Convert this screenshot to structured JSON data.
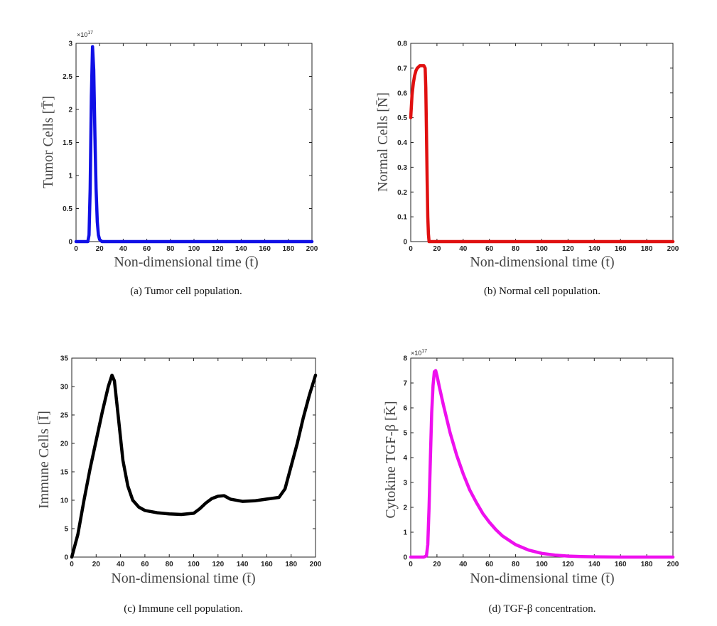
{
  "chart_data": [
    {
      "type": "line",
      "id": "a",
      "caption": "(a) Tumor cell population.",
      "xlabel": "Non-dimensional time",
      "xlabel_symbol": "(t̄)",
      "ylabel": "Tumor Cells",
      "ylabel_symbol": "[T̄]",
      "multiplier": "×10",
      "multiplier_exp": "17",
      "xlim": [
        0,
        200
      ],
      "ylim": [
        0,
        3
      ],
      "xticks": [
        "0",
        "20",
        "40",
        "60",
        "80",
        "100",
        "120",
        "140",
        "160",
        "180",
        "200"
      ],
      "yticks": [
        "0",
        "0.5",
        "1",
        "1.5",
        "2",
        "2.5",
        "3"
      ],
      "color": "#1010e6",
      "series": [
        {
          "x": [
            0,
            10,
            11,
            12,
            13,
            14,
            15,
            16,
            17,
            18,
            19,
            20,
            22,
            200
          ],
          "y": [
            0,
            0,
            0.1,
            0.8,
            2.2,
            2.95,
            2.6,
            1.6,
            0.8,
            0.3,
            0.1,
            0.03,
            0,
            0
          ]
        }
      ]
    },
    {
      "type": "line",
      "id": "b",
      "caption": "(b) Normal cell population.",
      "xlabel": "Non-dimensional time",
      "xlabel_symbol": "(t̄)",
      "ylabel": "Normal Cells",
      "ylabel_symbol": "[N̄]",
      "xlim": [
        0,
        200
      ],
      "ylim": [
        0,
        0.8
      ],
      "xticks": [
        "0",
        "20",
        "40",
        "60",
        "80",
        "100",
        "120",
        "140",
        "160",
        "180",
        "200"
      ],
      "yticks": [
        "0",
        "0.1",
        "0.2",
        "0.3",
        "0.4",
        "0.5",
        "0.6",
        "0.7",
        "0.8"
      ],
      "color": "#e01010",
      "series": [
        {
          "x": [
            0,
            1,
            2,
            3,
            4,
            5,
            6,
            7,
            8,
            9,
            10,
            11,
            11.5,
            12,
            12.5,
            13,
            13.5,
            14,
            200
          ],
          "y": [
            0.5,
            0.59,
            0.64,
            0.67,
            0.69,
            0.7,
            0.705,
            0.71,
            0.71,
            0.71,
            0.71,
            0.7,
            0.62,
            0.45,
            0.25,
            0.1,
            0.03,
            0,
            0
          ]
        }
      ]
    },
    {
      "type": "line",
      "id": "c",
      "caption": "(c) Immune cell population.",
      "xlabel": "Non-dimensional time",
      "xlabel_symbol": "(t̄)",
      "ylabel": "Immune Cells",
      "ylabel_symbol": "[Ī]",
      "xlim": [
        0,
        200
      ],
      "ylim": [
        0,
        35
      ],
      "xticks": [
        "0",
        "20",
        "40",
        "60",
        "80",
        "100",
        "120",
        "140",
        "160",
        "180",
        "200"
      ],
      "yticks": [
        "0",
        "5",
        "10",
        "15",
        "20",
        "25",
        "30",
        "35"
      ],
      "color": "#000000",
      "series": [
        {
          "x": [
            0,
            5,
            10,
            15,
            20,
            25,
            30,
            33,
            35,
            38,
            42,
            46,
            50,
            55,
            60,
            70,
            80,
            90,
            100,
            105,
            110,
            115,
            120,
            125,
            130,
            140,
            150,
            160,
            170,
            175,
            180,
            185,
            190,
            195,
            200
          ],
          "y": [
            0,
            4,
            10,
            15.5,
            20.5,
            25.5,
            30,
            32,
            31,
            25,
            17,
            12.5,
            10,
            8.8,
            8.2,
            7.8,
            7.6,
            7.5,
            7.7,
            8.5,
            9.5,
            10.3,
            10.7,
            10.8,
            10.2,
            9.8,
            9.9,
            10.2,
            10.5,
            12,
            16,
            20,
            24.5,
            28.5,
            32
          ]
        }
      ]
    },
    {
      "type": "line",
      "id": "d",
      "caption": "(d) TGF-β concentration.",
      "xlabel": "Non-dimensional time",
      "xlabel_symbol": "(t̄)",
      "ylabel": "Cytokine TGF-β",
      "ylabel_symbol": "[K̄]",
      "multiplier": "×10",
      "multiplier_exp": "17",
      "xlim": [
        0,
        200
      ],
      "ylim": [
        0,
        8
      ],
      "xticks": [
        "0",
        "20",
        "40",
        "60",
        "80",
        "100",
        "120",
        "140",
        "160",
        "180",
        "200"
      ],
      "yticks": [
        "0",
        "1",
        "2",
        "3",
        "4",
        "5",
        "6",
        "7",
        "8"
      ],
      "color": "#ee10ee",
      "series": [
        {
          "x": [
            0,
            10,
            12,
            13,
            14,
            15,
            16,
            17,
            18,
            19,
            20,
            22,
            25,
            30,
            35,
            40,
            45,
            50,
            55,
            60,
            65,
            70,
            80,
            90,
            100,
            110,
            120,
            130,
            140,
            160,
            180,
            200
          ],
          "y": [
            0,
            0,
            0.05,
            0.5,
            2,
            4,
            5.8,
            6.9,
            7.45,
            7.5,
            7.3,
            6.8,
            6.1,
            5.0,
            4.1,
            3.35,
            2.7,
            2.2,
            1.75,
            1.4,
            1.1,
            0.85,
            0.5,
            0.28,
            0.15,
            0.08,
            0.04,
            0.02,
            0.01,
            0,
            0,
            0
          ]
        }
      ]
    }
  ]
}
